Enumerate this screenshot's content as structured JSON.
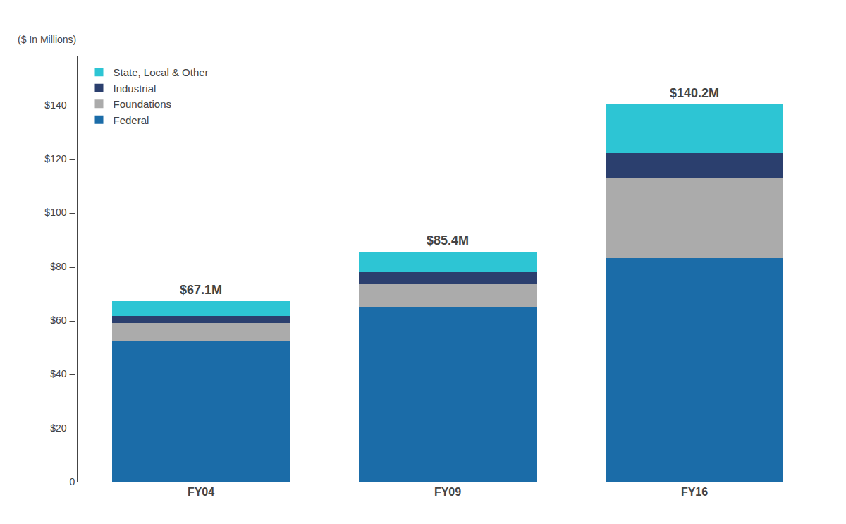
{
  "chart_data": {
    "type": "bar",
    "stacked": true,
    "categories": [
      "FY04",
      "FY09",
      "FY16"
    ],
    "series": [
      {
        "name": "Federal",
        "color": "#1B6CA8",
        "values": [
          52.5,
          65.0,
          83.0
        ]
      },
      {
        "name": "Foundations",
        "color": "#ABABAB",
        "values": [
          6.5,
          8.5,
          30.0
        ]
      },
      {
        "name": "Industrial",
        "color": "#2B3F6E",
        "values": [
          2.5,
          4.5,
          9.0
        ]
      },
      {
        "name": "State, Local & Other",
        "color": "#2DC5D4",
        "values": [
          5.6,
          7.4,
          18.2
        ]
      }
    ],
    "ylabel": "($ In Millions)",
    "annotations": [
      {
        "category": "FY04",
        "y": 67.1,
        "text": "$67.1M"
      },
      {
        "category": "FY09",
        "y": 85.4,
        "text": "$85.4M"
      },
      {
        "category": "FY16",
        "y": 140.2,
        "text": "$140.2M"
      }
    ],
    "ylim": [
      0,
      158
    ],
    "yticks": [
      0,
      {
        "value": 20,
        "label": "$20 –"
      },
      {
        "value": 40,
        "label": "$40 –"
      },
      {
        "value": 60,
        "label": "$60 –"
      },
      {
        "value": 80,
        "label": "$80 –"
      },
      {
        "value": 100,
        "label": "$100 –"
      },
      {
        "value": 120,
        "label": "$120 –"
      },
      {
        "value": 140,
        "label": "$140 –"
      }
    ],
    "grid": false,
    "legend": "upper left"
  }
}
